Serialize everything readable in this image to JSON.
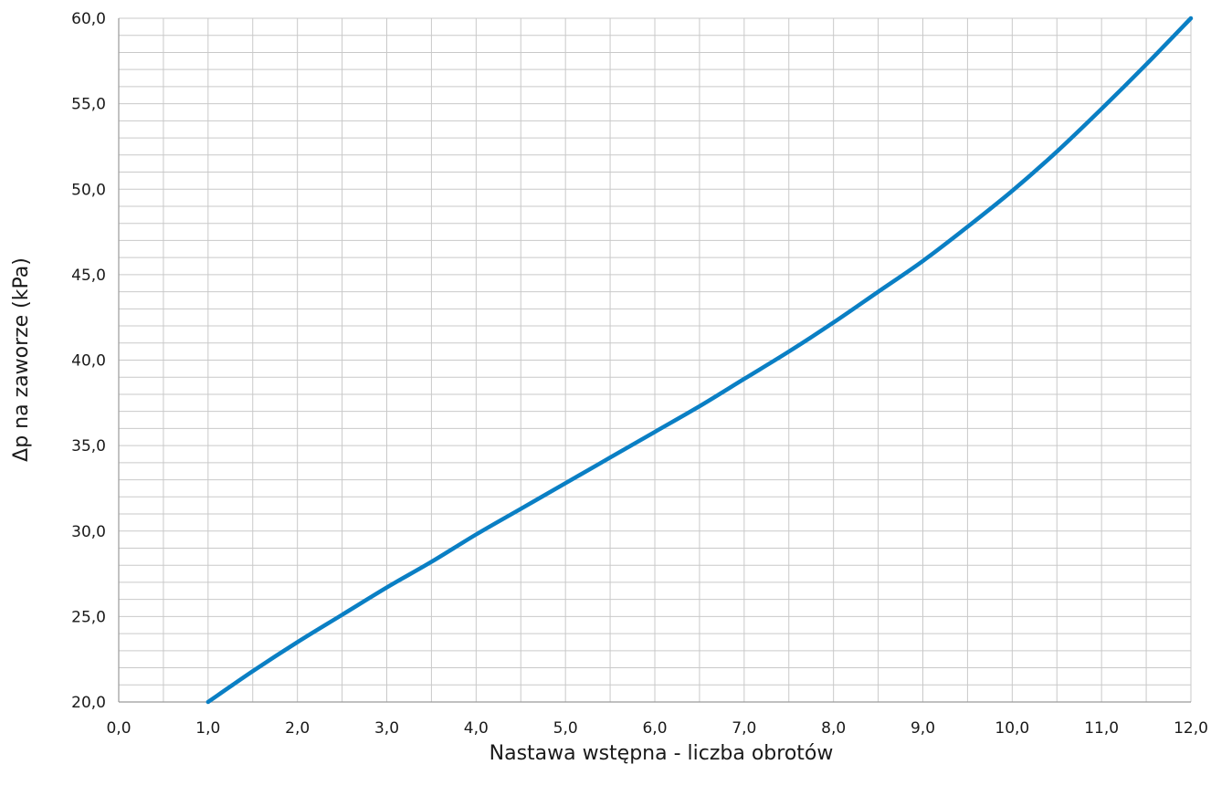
{
  "chart_data": {
    "type": "line",
    "xlabel": "Nastawa wstępna - liczba obrotów",
    "ylabel": "Δp na zaworze (kPa)",
    "xlim": [
      0,
      12
    ],
    "ylim": [
      20,
      60
    ],
    "x_major_step": 1,
    "x_minor_step": 0.5,
    "y_major_step": 5,
    "y_minor_step": 1,
    "x_ticks": [
      "0,0",
      "1,0",
      "2,0",
      "3,0",
      "4,0",
      "5,0",
      "6,0",
      "7,0",
      "8,0",
      "9,0",
      "10,0",
      "11,0",
      "12,0"
    ],
    "y_ticks": [
      "20,0",
      "25,0",
      "30,0",
      "35,0",
      "40,0",
      "45,0",
      "50,0",
      "55,0",
      "60,0"
    ],
    "grid": true,
    "series": [
      {
        "color": "#0a7fc4",
        "x": [
          1.0,
          1.5,
          2.0,
          2.5,
          3.0,
          3.5,
          4.0,
          4.5,
          5.0,
          5.5,
          6.0,
          6.5,
          7.0,
          7.5,
          8.0,
          8.5,
          9.0,
          9.5,
          10.0,
          10.5,
          11.0,
          11.5,
          12.0
        ],
        "values": [
          20.0,
          21.8,
          23.5,
          25.1,
          26.7,
          28.2,
          29.8,
          31.3,
          32.8,
          34.3,
          35.8,
          37.3,
          38.9,
          40.5,
          42.2,
          44.0,
          45.8,
          47.8,
          49.9,
          52.2,
          54.7,
          57.3,
          60.0
        ]
      }
    ]
  }
}
